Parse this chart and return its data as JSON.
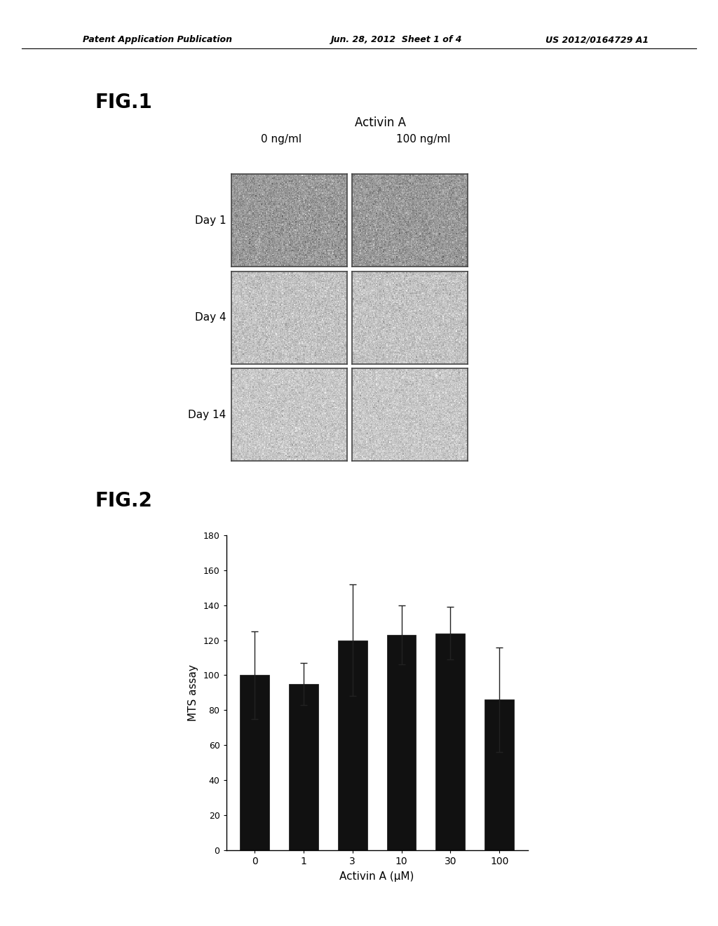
{
  "background_color": "#ffffff",
  "header_left": "Patent Application Publication",
  "header_mid": "Jun. 28, 2012  Sheet 1 of 4",
  "header_right": "US 2012/0164729 A1",
  "fig1_label": "FIG.1",
  "fig1_title": "Activin A",
  "fig1_col_labels": [
    "0 ng/ml",
    "100 ng/ml"
  ],
  "fig1_row_labels": [
    "Day 1",
    "Day 4",
    "Day 14"
  ],
  "fig2_label": "FIG.2",
  "bar_values": [
    100,
    95,
    120,
    123,
    124,
    86
  ],
  "bar_errors": [
    25,
    12,
    32,
    17,
    15,
    30
  ],
  "bar_categories": [
    "0",
    "1",
    "3",
    "10",
    "30",
    "100"
  ],
  "bar_color": "#111111",
  "bar_edge_color": "#111111",
  "xlabel": "Activin A (μM)",
  "ylabel": "MTS assay",
  "ylim": [
    0,
    180
  ],
  "yticks": [
    0,
    20,
    40,
    60,
    80,
    100,
    120,
    140,
    160,
    180
  ]
}
